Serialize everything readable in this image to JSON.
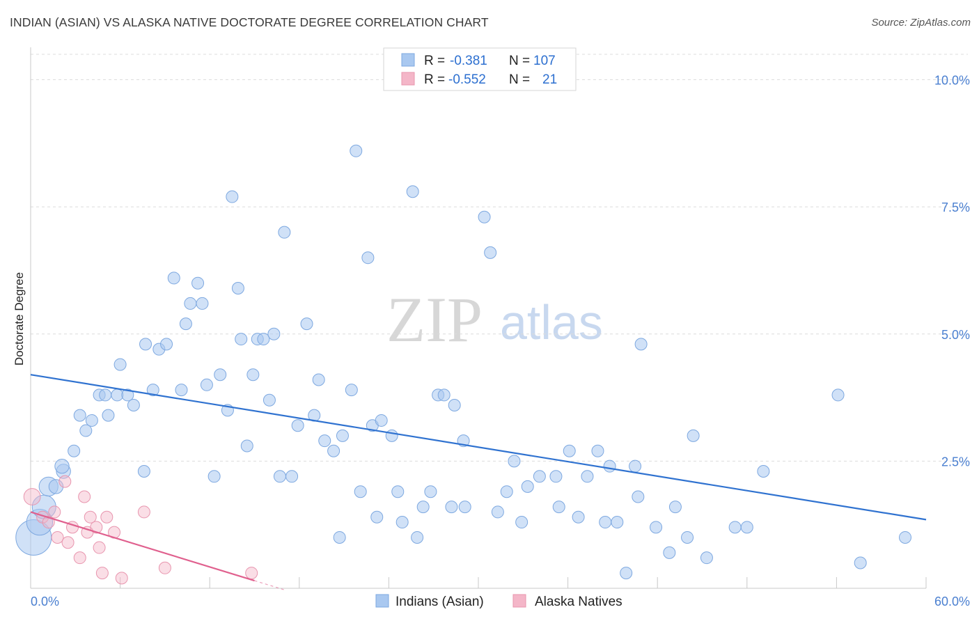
{
  "header": {
    "title": "INDIAN (ASIAN) VS ALASKA NATIVE DOCTORATE DEGREE CORRELATION CHART",
    "source": "Source: ZipAtlas.com"
  },
  "watermark": {
    "zip": "ZIP",
    "atlas": "atlas"
  },
  "legend_box": {
    "rows": [
      {
        "r_label": "R =",
        "r_value": "-0.381",
        "n_label": "N =",
        "n_value": "107",
        "color": "#a9c8f0"
      },
      {
        "r_label": "R =",
        "r_value": "-0.552",
        "n_label": "N =",
        "n_value": "21",
        "color": "#f4b6c8"
      }
    ]
  },
  "bottom_legend": [
    {
      "label": "Indians (Asian)",
      "color": "#a9c8f0"
    },
    {
      "label": "Alaska Natives",
      "color": "#f4b6c8"
    }
  ],
  "chart_data": {
    "type": "scatter",
    "ylabel": "Doctorate Degree",
    "xlim": [
      0,
      60
    ],
    "ylim": [
      0,
      10.5
    ],
    "x_tick_labels": [
      {
        "value": 0,
        "label": "0.0%"
      },
      {
        "value": 60,
        "label": "60.0%"
      }
    ],
    "y_tick_labels": [
      {
        "value": 2.5,
        "label": "2.5%"
      },
      {
        "value": 5.0,
        "label": "5.0%"
      },
      {
        "value": 7.5,
        "label": "7.5%"
      },
      {
        "value": 10.0,
        "label": "10.0%"
      }
    ],
    "grid": true,
    "legend": "top-center",
    "series": [
      {
        "name": "Indians (Asian)",
        "color": "#a9c8f0",
        "stroke": "#7da8e0",
        "trend": {
          "x": [
            0,
            60
          ],
          "y": [
            4.2,
            1.35
          ],
          "color": "#2f72d0"
        },
        "points": [
          [
            0.2,
            1.0,
            3
          ],
          [
            0.6,
            1.3,
            2.2
          ],
          [
            0.9,
            1.6,
            2
          ],
          [
            1.2,
            2.0,
            1.6
          ],
          [
            1.7,
            2.0,
            1.2
          ],
          [
            2.2,
            2.3,
            1.2
          ],
          [
            2.1,
            2.4,
            1.2
          ],
          [
            2.9,
            2.7,
            1
          ],
          [
            3.3,
            3.4,
            1
          ],
          [
            3.7,
            3.1,
            1
          ],
          [
            4.1,
            3.3,
            1
          ],
          [
            4.6,
            3.8,
            1
          ],
          [
            5.2,
            3.4,
            1
          ],
          [
            5.0,
            3.8,
            1
          ],
          [
            5.8,
            3.8,
            1
          ],
          [
            6.5,
            3.8,
            1
          ],
          [
            6.9,
            3.6,
            1
          ],
          [
            6.0,
            4.4,
            1
          ],
          [
            7.7,
            4.8,
            1
          ],
          [
            8.2,
            3.9,
            1
          ],
          [
            7.6,
            2.3,
            1
          ],
          [
            8.6,
            4.7,
            1
          ],
          [
            9.1,
            4.8,
            1
          ],
          [
            9.6,
            6.1,
            1
          ],
          [
            10.1,
            3.9,
            1
          ],
          [
            10.4,
            5.2,
            1
          ],
          [
            10.7,
            5.6,
            1
          ],
          [
            11.2,
            6.0,
            1
          ],
          [
            11.5,
            5.6,
            1
          ],
          [
            11.8,
            4.0,
            1
          ],
          [
            12.3,
            2.2,
            1
          ],
          [
            12.7,
            4.2,
            1
          ],
          [
            13.2,
            3.5,
            1
          ],
          [
            13.5,
            7.7,
            1
          ],
          [
            13.9,
            5.9,
            1
          ],
          [
            14.1,
            4.9,
            1
          ],
          [
            14.5,
            2.8,
            1
          ],
          [
            14.9,
            4.2,
            1
          ],
          [
            15.2,
            4.9,
            1
          ],
          [
            15.6,
            4.9,
            1
          ],
          [
            16.0,
            3.7,
            1
          ],
          [
            16.3,
            5.0,
            1
          ],
          [
            16.7,
            2.2,
            1
          ],
          [
            17.0,
            7.0,
            1
          ],
          [
            17.5,
            2.2,
            1
          ],
          [
            17.9,
            3.2,
            1
          ],
          [
            18.5,
            5.2,
            1
          ],
          [
            19.0,
            3.4,
            1
          ],
          [
            19.3,
            4.1,
            1
          ],
          [
            19.7,
            2.9,
            1
          ],
          [
            20.3,
            2.7,
            1
          ],
          [
            20.7,
            1.0,
            1
          ],
          [
            20.9,
            3.0,
            1
          ],
          [
            21.5,
            3.9,
            1
          ],
          [
            21.8,
            8.6,
            1
          ],
          [
            22.1,
            1.9,
            1
          ],
          [
            22.6,
            6.5,
            1
          ],
          [
            22.9,
            3.2,
            1
          ],
          [
            23.2,
            1.4,
            1
          ],
          [
            23.5,
            3.3,
            1
          ],
          [
            24.2,
            3.0,
            1
          ],
          [
            24.6,
            1.9,
            1
          ],
          [
            24.9,
            1.3,
            1
          ],
          [
            25.6,
            7.8,
            1
          ],
          [
            25.9,
            1.0,
            1
          ],
          [
            26.3,
            1.6,
            1
          ],
          [
            26.8,
            1.9,
            1
          ],
          [
            27.3,
            3.8,
            1
          ],
          [
            27.7,
            3.8,
            1
          ],
          [
            28.2,
            1.6,
            1
          ],
          [
            28.4,
            3.6,
            1
          ],
          [
            29.0,
            2.9,
            1
          ],
          [
            29.1,
            1.6,
            1
          ],
          [
            30.4,
            7.3,
            1
          ],
          [
            30.8,
            6.6,
            1
          ],
          [
            31.3,
            1.5,
            1
          ],
          [
            31.9,
            1.9,
            1
          ],
          [
            32.4,
            2.5,
            1
          ],
          [
            32.9,
            1.3,
            1
          ],
          [
            33.3,
            2.0,
            1
          ],
          [
            34.1,
            2.2,
            1
          ],
          [
            35.2,
            2.2,
            1
          ],
          [
            35.4,
            1.6,
            1
          ],
          [
            36.1,
            2.7,
            1
          ],
          [
            36.7,
            1.4,
            1
          ],
          [
            37.3,
            2.2,
            1
          ],
          [
            38.0,
            2.7,
            1
          ],
          [
            38.5,
            1.3,
            1
          ],
          [
            38.8,
            2.4,
            1
          ],
          [
            39.3,
            1.3,
            1
          ],
          [
            39.9,
            0.3,
            1
          ],
          [
            40.5,
            2.4,
            1
          ],
          [
            40.7,
            1.8,
            1
          ],
          [
            40.9,
            4.8,
            1
          ],
          [
            41.9,
            1.2,
            1
          ],
          [
            42.8,
            0.7,
            1
          ],
          [
            43.2,
            1.6,
            1
          ],
          [
            44.0,
            1.0,
            1
          ],
          [
            44.4,
            3.0,
            1
          ],
          [
            45.3,
            0.6,
            1
          ],
          [
            47.2,
            1.2,
            1
          ],
          [
            48.0,
            1.2,
            1
          ],
          [
            49.1,
            2.3,
            1
          ],
          [
            54.1,
            3.8,
            1
          ],
          [
            55.6,
            0.5,
            1
          ],
          [
            58.6,
            1.0,
            1
          ]
        ]
      },
      {
        "name": "Alaska Natives",
        "color": "#f4b6c8",
        "stroke": "#e895ae",
        "trend": {
          "x": [
            0,
            15
          ],
          "y": [
            1.5,
            0.15
          ],
          "color": "#e0608e",
          "dash_to_x": 17
        },
        "points": [
          [
            0.1,
            1.8,
            1.4
          ],
          [
            0.8,
            1.4,
            1
          ],
          [
            1.2,
            1.3,
            1
          ],
          [
            1.6,
            1.5,
            1
          ],
          [
            1.8,
            1.0,
            1
          ],
          [
            2.3,
            2.1,
            1
          ],
          [
            2.5,
            0.9,
            1
          ],
          [
            2.8,
            1.2,
            1
          ],
          [
            3.3,
            0.6,
            1
          ],
          [
            3.6,
            1.8,
            1
          ],
          [
            3.8,
            1.1,
            1
          ],
          [
            4.0,
            1.4,
            1
          ],
          [
            4.6,
            0.8,
            1
          ],
          [
            4.8,
            0.3,
            1
          ],
          [
            5.1,
            1.4,
            1
          ],
          [
            5.6,
            1.1,
            1
          ],
          [
            6.1,
            0.2,
            1
          ],
          [
            7.6,
            1.5,
            1
          ],
          [
            9.0,
            0.4,
            1
          ],
          [
            14.8,
            0.3,
            1
          ],
          [
            4.4,
            1.2,
            1
          ]
        ]
      }
    ]
  }
}
